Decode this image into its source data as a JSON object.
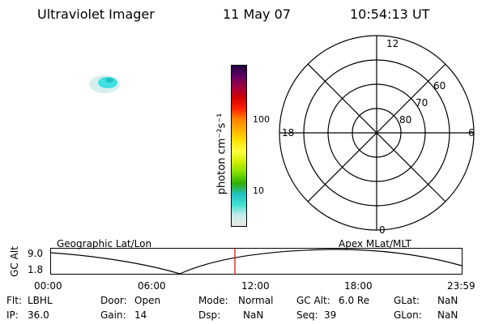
{
  "header": {
    "instrument": "Ultraviolet Imager",
    "date": "11 May 07",
    "time": "10:54:13 UT"
  },
  "colorbar": {
    "label": "photon cm⁻²s⁻¹",
    "ticks": [
      "100",
      "10"
    ]
  },
  "polar": {
    "mlt_labels": {
      "top": "12",
      "left": "18",
      "right": "6",
      "bottom": "0"
    },
    "lat_labels": [
      "60",
      "70",
      "80"
    ]
  },
  "orbit": {
    "left_title": "Geographic Lat/Lon",
    "right_title": "Apex MLat/MLT",
    "ylabel": "GC Alt",
    "ymax": "9.0",
    "ymin": "1.8",
    "xticks": [
      "00:00",
      "06:00",
      "12:00",
      "18:00",
      "23:59"
    ],
    "current_time_color": "#d00000"
  },
  "footer": {
    "row1": [
      {
        "label": "Flt:",
        "value": "LBHL"
      },
      {
        "label": "Door:",
        "value": "Open"
      },
      {
        "label": "Mode:",
        "value": "Normal"
      },
      {
        "label": "GC Alt:",
        "value": "6.0 Re"
      },
      {
        "label": "GLat:",
        "value": "NaN"
      }
    ],
    "row2": [
      {
        "label": "IP:",
        "value": "36.0"
      },
      {
        "label": "Gain:",
        "value": "14"
      },
      {
        "label": "Dsp:",
        "value": "NaN"
      },
      {
        "label": "Seq:",
        "value": "39"
      },
      {
        "label": "GLon:",
        "value": "NaN"
      }
    ]
  },
  "colors": {
    "colorbar_stops": [
      "#e8e8e8",
      "#c8ecec",
      "#40e0d0",
      "#20c0c0",
      "#30b000",
      "#80e000",
      "#d0f000",
      "#ffff40",
      "#ffe000",
      "#ffb000",
      "#ff8000",
      "#ff2000",
      "#d00000",
      "#a00040",
      "#600060",
      "#200040"
    ],
    "aurora": "#40e0e0"
  }
}
